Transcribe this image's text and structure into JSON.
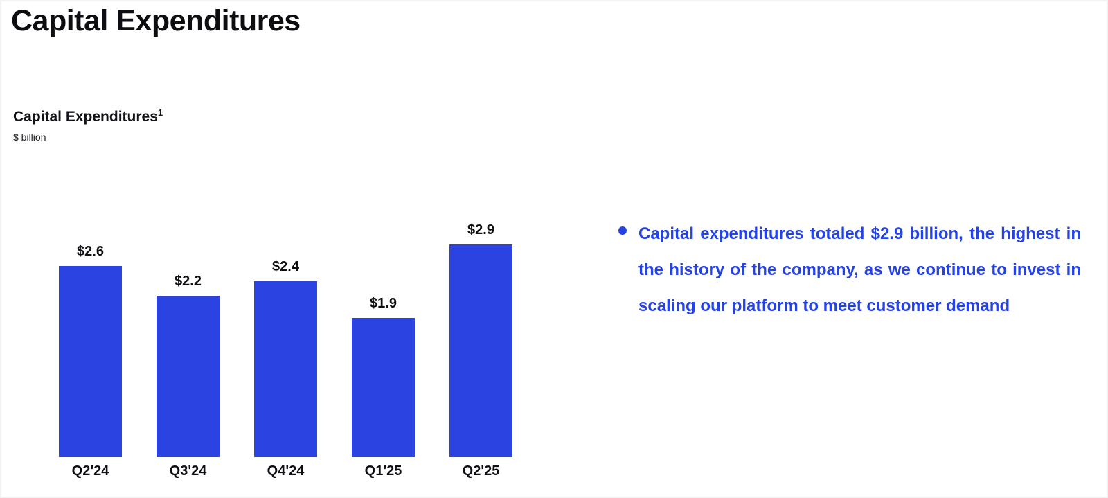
{
  "page": {
    "title": "Capital Expenditures"
  },
  "chart": {
    "subtitle": "Capital Expenditures",
    "superscript": "1",
    "unit_label": "$ billion"
  },
  "chart_data": {
    "type": "bar",
    "title": "Capital Expenditures",
    "ylabel": "$ billion",
    "categories": [
      "Q2'24",
      "Q3'24",
      "Q4'24",
      "Q1'25",
      "Q2'25"
    ],
    "values": [
      2.6,
      2.2,
      2.4,
      1.9,
      2.9
    ],
    "value_labels": [
      "$2.6",
      "$2.2",
      "$2.4",
      "$1.9",
      "$2.9"
    ],
    "ylim": [
      0,
      3.2
    ],
    "grid": false,
    "legend": false,
    "bar_color": "#2b43e0"
  },
  "commentary": {
    "bullet_text": "Capital expenditures totaled $2.9 billion, the highest in the history of the company, as we continue to invest in scaling our platform to meet customer demand",
    "text_color": "#2443e2"
  }
}
